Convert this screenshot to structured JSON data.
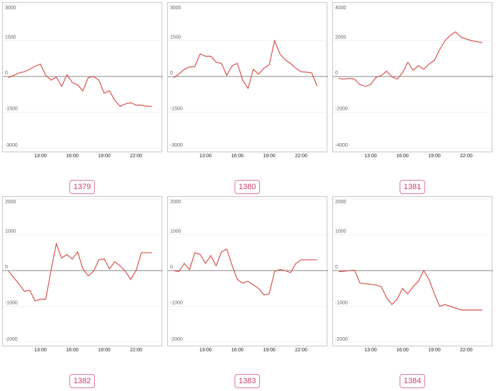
{
  "chart_data": [
    {
      "type": "line",
      "badge": "1379",
      "ylim": [
        -3000,
        3000
      ],
      "yticks": [
        3000,
        1500,
        0,
        -1500,
        -3000
      ],
      "xticks": [
        "13:00",
        "16:00",
        "19:00",
        "22:00"
      ],
      "x": [
        10.0,
        10.5,
        11.0,
        11.5,
        12.0,
        12.5,
        13.0,
        13.5,
        14.0,
        14.5,
        15.0,
        15.5,
        16.0,
        16.5,
        17.0,
        17.5,
        18.0,
        18.5,
        19.0,
        19.5,
        20.0,
        20.5,
        21.0,
        21.5,
        22.0,
        22.5,
        23.0,
        23.5
      ],
      "series": [
        {
          "color": "#d9534f",
          "values": [
            -50,
            50,
            150,
            200,
            300,
            430,
            520,
            50,
            -150,
            -20,
            -420,
            80,
            -250,
            -350,
            -600,
            -50,
            0,
            -150,
            -700,
            -600,
            -1000,
            -1250,
            -1150,
            -1100,
            -1200,
            -1200,
            -1250,
            -1250
          ]
        }
      ]
    },
    {
      "type": "line",
      "badge": "1380",
      "ylim": [
        -3000,
        3000
      ],
      "yticks": [
        3000,
        1500,
        0,
        -1500,
        -3000
      ],
      "xticks": [
        "13:00",
        "16:00",
        "19:00",
        "22:00"
      ],
      "x": [
        10.0,
        10.5,
        11.0,
        11.5,
        12.0,
        12.5,
        13.0,
        13.5,
        14.0,
        14.5,
        15.0,
        15.5,
        16.0,
        16.5,
        17.0,
        17.5,
        18.0,
        18.5,
        19.0,
        19.5,
        20.0,
        20.5,
        21.0,
        21.5,
        22.0,
        22.5,
        23.0,
        23.5
      ],
      "series": [
        {
          "color": "#d9534f",
          "values": [
            -50,
            100,
            300,
            400,
            420,
            950,
            850,
            850,
            600,
            550,
            50,
            450,
            550,
            -150,
            -500,
            300,
            100,
            350,
            500,
            1500,
            950,
            700,
            550,
            350,
            200,
            180,
            150,
            -400
          ]
        }
      ]
    },
    {
      "type": "line",
      "badge": "1381",
      "ylim": [
        -4000,
        4000
      ],
      "yticks": [
        4000,
        2000,
        0,
        -2000,
        -4000
      ],
      "xticks": [
        "13:00",
        "16:00",
        "19:00",
        "22:00"
      ],
      "x": [
        10.0,
        10.5,
        11.0,
        11.5,
        12.0,
        12.5,
        13.0,
        13.5,
        14.0,
        14.5,
        15.0,
        15.5,
        16.0,
        16.5,
        17.0,
        17.5,
        18.0,
        18.5,
        19.0,
        19.5,
        20.0,
        20.5,
        21.0,
        21.5,
        22.0,
        22.5,
        23.0,
        23.5
      ],
      "series": [
        {
          "color": "#d9534f",
          "values": [
            -100,
            -150,
            -100,
            -150,
            -450,
            -550,
            -450,
            -50,
            50,
            300,
            0,
            -150,
            200,
            800,
            350,
            600,
            400,
            700,
            900,
            1500,
            2000,
            2300,
            2500,
            2200,
            2100,
            2000,
            1950,
            1900
          ]
        }
      ]
    },
    {
      "type": "line",
      "badge": "1382",
      "ylim": [
        -2000,
        2000
      ],
      "yticks": [
        2000,
        1000,
        0,
        -1000,
        -2000
      ],
      "xticks": [
        "13:00",
        "16:00",
        "19:00",
        "22:00"
      ],
      "x": [
        10.0,
        10.5,
        11.0,
        11.5,
        12.0,
        12.5,
        13.0,
        13.5,
        14.0,
        14.5,
        15.0,
        15.5,
        16.0,
        16.5,
        17.0,
        17.5,
        18.0,
        18.5,
        19.0,
        19.5,
        20.0,
        20.5,
        21.0,
        21.5,
        22.0,
        22.5,
        23.0,
        23.5
      ],
      "series": [
        {
          "color": "#d9534f",
          "values": [
            -20,
            -200,
            -380,
            -580,
            -550,
            -850,
            -800,
            -800,
            0,
            750,
            350,
            450,
            320,
            520,
            50,
            -150,
            -20,
            300,
            330,
            50,
            250,
            130,
            -20,
            -250,
            0,
            500,
            500,
            500
          ]
        }
      ]
    },
    {
      "type": "line",
      "badge": "1383",
      "ylim": [
        -2000,
        2000
      ],
      "yticks": [
        2000,
        1000,
        0,
        -1000,
        -2000
      ],
      "xticks": [
        "13:00",
        "16:00",
        "19:00",
        "22:00"
      ],
      "x": [
        10.0,
        10.5,
        11.0,
        11.5,
        12.0,
        12.5,
        13.0,
        13.5,
        14.0,
        14.5,
        15.0,
        15.5,
        16.0,
        16.5,
        17.0,
        17.5,
        18.0,
        18.5,
        19.0,
        19.5,
        20.0,
        20.5,
        21.0,
        21.5,
        22.0,
        22.5,
        23.0,
        23.5
      ],
      "series": [
        {
          "color": "#d9534f",
          "values": [
            0,
            -30,
            200,
            30,
            500,
            450,
            200,
            420,
            130,
            520,
            600,
            150,
            -250,
            -350,
            -300,
            -400,
            -500,
            -680,
            -650,
            -20,
            30,
            0,
            -60,
            200,
            300,
            300,
            300,
            300
          ]
        }
      ]
    },
    {
      "type": "line",
      "badge": "1384",
      "ylim": [
        -2000,
        2000
      ],
      "yticks": [
        2000,
        1000,
        0,
        -1000,
        -2000
      ],
      "xticks": [
        "13:00",
        "16:00",
        "19:00",
        "22:00"
      ],
      "x": [
        10.0,
        10.5,
        11.0,
        11.5,
        12.0,
        12.5,
        13.0,
        13.5,
        14.0,
        14.5,
        15.0,
        15.5,
        16.0,
        16.5,
        17.0,
        17.5,
        18.0,
        18.5,
        19.0,
        19.5,
        20.0,
        20.5,
        21.0,
        21.5,
        22.0,
        22.5,
        23.0,
        23.5
      ],
      "series": [
        {
          "color": "#d9534f",
          "values": [
            -30,
            -20,
            0,
            10,
            -350,
            -370,
            -380,
            -400,
            -450,
            -750,
            -950,
            -800,
            -500,
            -650,
            -450,
            -300,
            0,
            -250,
            -650,
            -1000,
            -950,
            -1000,
            -1050,
            -1100,
            -1100,
            -1100,
            -1100,
            -1100
          ]
        }
      ]
    }
  ]
}
